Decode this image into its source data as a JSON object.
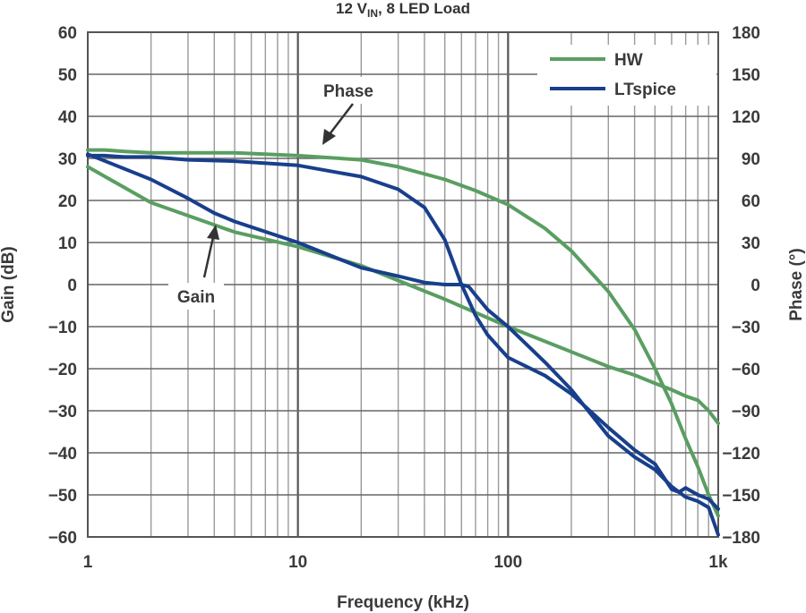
{
  "chart_data": {
    "type": "line",
    "title": {
      "main": "12 V",
      "sub": "IN",
      "rest": ", 8 LED Load"
    },
    "xlabel": "Frequency (kHz)",
    "ylabel_left": "Gain (dB)",
    "ylabel_right": "Phase (°)",
    "x_scale": "log",
    "xlim": [
      1,
      1000
    ],
    "ylim_left": [
      -60,
      60
    ],
    "ylim_right": [
      -180,
      180
    ],
    "x_ticks": [
      {
        "value": 1,
        "label": "1"
      },
      {
        "value": 10,
        "label": "10"
      },
      {
        "value": 100,
        "label": "100"
      },
      {
        "value": 1000,
        "label": "1k"
      }
    ],
    "y_ticks_left": [
      "60",
      "50",
      "40",
      "30",
      "20",
      "10",
      "0",
      "−10",
      "−20",
      "−30",
      "−40",
      "−50",
      "−60"
    ],
    "y_ticks_right": [
      "180",
      "150",
      "120",
      "90",
      "60",
      "30",
      "0",
      "−30",
      "−60",
      "−90",
      "−120",
      "−150",
      "−180"
    ],
    "grid": true,
    "legend": {
      "position": "top-right",
      "entries": [
        {
          "name": "HW",
          "color": "#5a9e62"
        },
        {
          "name": "LTspice",
          "color": "#183f8c"
        }
      ]
    },
    "series": [
      {
        "name": "HW",
        "quantity": "gain",
        "axis": "left",
        "color": "#5a9e62",
        "x": [
          1,
          2,
          5,
          10,
          20,
          50,
          100,
          200,
          300,
          400,
          500,
          600,
          700,
          800,
          900,
          1000
        ],
        "y": [
          28,
          19.5,
          12.5,
          9,
          4.5,
          -3.5,
          -10,
          -16,
          -19.5,
          -21.5,
          -23.5,
          -25,
          -26.5,
          -27.5,
          -30,
          -33
        ]
      },
      {
        "name": "HW",
        "quantity": "phase",
        "axis": "right",
        "color": "#5a9e62",
        "x": [
          1,
          1.2,
          1.5,
          2,
          3,
          5,
          10,
          20,
          30,
          50,
          70,
          100,
          150,
          200,
          300,
          400,
          500,
          600,
          700,
          800,
          900,
          1000
        ],
        "y": [
          96,
          96,
          95,
          94,
          94,
          94,
          92,
          89,
          84,
          75,
          67,
          57,
          40,
          24,
          -5,
          -32,
          -60,
          -85,
          -110,
          -130,
          -150,
          -165
        ]
      },
      {
        "name": "LTspice",
        "quantity": "gain",
        "axis": "left",
        "color": "#183f8c",
        "x": [
          1,
          2,
          3,
          4,
          5,
          10,
          20,
          30,
          40,
          50,
          60,
          65,
          70,
          80,
          100,
          150,
          200,
          300,
          400,
          500,
          600,
          700,
          800,
          900,
          1000
        ],
        "y": [
          31,
          25,
          20.5,
          17,
          15,
          10,
          4,
          2,
          0.5,
          0,
          0,
          -0.5,
          -2.5,
          -6,
          -10,
          -18.5,
          -25,
          -36,
          -41,
          -44,
          -48,
          -50.5,
          -51.5,
          -53,
          -59.5
        ]
      },
      {
        "name": "LTspice",
        "quantity": "phase",
        "axis": "right",
        "color": "#183f8c",
        "x": [
          1,
          1.2,
          1.5,
          2,
          3,
          5,
          10,
          20,
          30,
          40,
          50,
          60,
          70,
          80,
          100,
          150,
          200,
          300,
          400,
          500,
          600,
          650,
          700,
          800,
          900,
          1000
        ],
        "y": [
          92,
          92,
          91,
          91,
          89,
          88,
          85,
          77,
          68,
          55,
          32,
          0,
          -22,
          -36,
          -52,
          -65,
          -78,
          -102,
          -118,
          -128,
          -146,
          -148,
          -145,
          -150,
          -153,
          -160
        ]
      }
    ],
    "annotations": [
      {
        "text": "Phase",
        "points_to": {
          "x": 13,
          "y": 31
        }
      },
      {
        "text": "Gain",
        "points_to": {
          "x": 4.2,
          "y": 15
        }
      }
    ]
  }
}
